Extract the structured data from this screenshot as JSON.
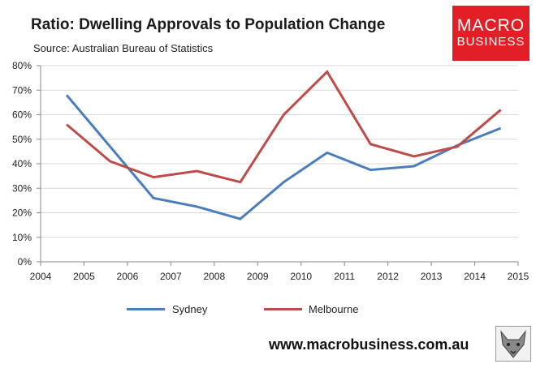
{
  "header": {
    "title": "Ratio: Dwelling Approvals to Population Change",
    "source": "Source: Australian Bureau of Statistics"
  },
  "logo": {
    "line1": "MACRO",
    "line2": "BUSINESS",
    "color": "#e21f26"
  },
  "footer": {
    "website": "www.macrobusiness.com.au"
  },
  "chart_data": {
    "type": "line",
    "title": "Ratio: Dwelling Approvals to Population Change",
    "xlabel": "",
    "ylabel": "",
    "xlim": [
      2004,
      2015
    ],
    "ylim": [
      0,
      80
    ],
    "x_ticks": [
      2004,
      2005,
      2006,
      2007,
      2008,
      2009,
      2010,
      2011,
      2012,
      2013,
      2014,
      2015
    ],
    "y_ticks": [
      0,
      10,
      20,
      30,
      40,
      50,
      60,
      70,
      80
    ],
    "y_tick_format": "percent",
    "grid": "horizontal",
    "legend_position": "bottom",
    "x": [
      2004.6,
      2005.6,
      2006.6,
      2007.6,
      2008.6,
      2009.6,
      2010.6,
      2011.6,
      2012.6,
      2013.6,
      2014.6
    ],
    "series": [
      {
        "name": "Sydney",
        "color": "#4a7ebb",
        "values": [
          68,
          47,
          26,
          22.5,
          17.5,
          32.5,
          44.5,
          37.5,
          39,
          47.5,
          54.5
        ]
      },
      {
        "name": "Melbourne",
        "color": "#be4b48",
        "values": [
          56,
          41,
          34.5,
          37,
          32.5,
          60,
          77.5,
          48,
          43,
          47,
          62
        ]
      }
    ]
  }
}
